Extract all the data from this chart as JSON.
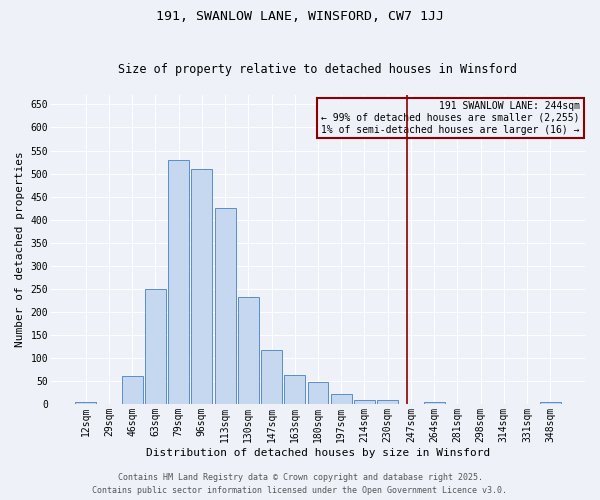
{
  "title": "191, SWANLOW LANE, WINSFORD, CW7 1JJ",
  "subtitle": "Size of property relative to detached houses in Winsford",
  "xlabel": "Distribution of detached houses by size in Winsford",
  "ylabel": "Number of detached properties",
  "bar_labels": [
    "12sqm",
    "29sqm",
    "46sqm",
    "63sqm",
    "79sqm",
    "96sqm",
    "113sqm",
    "130sqm",
    "147sqm",
    "163sqm",
    "180sqm",
    "197sqm",
    "214sqm",
    "230sqm",
    "247sqm",
    "264sqm",
    "281sqm",
    "298sqm",
    "314sqm",
    "331sqm",
    "348sqm"
  ],
  "bar_heights": [
    4,
    0,
    60,
    250,
    530,
    510,
    425,
    232,
    117,
    63,
    47,
    22,
    8,
    8,
    0,
    5,
    0,
    0,
    0,
    0,
    4
  ],
  "bar_color": "#c5d8f0",
  "bar_edge_color": "#5b8ec7",
  "ylim": [
    0,
    670
  ],
  "yticks": [
    0,
    50,
    100,
    150,
    200,
    250,
    300,
    350,
    400,
    450,
    500,
    550,
    600,
    650
  ],
  "vline_color": "#8b0000",
  "annotation_text": "191 SWANLOW LANE: 244sqm\n← 99% of detached houses are smaller (2,255)\n1% of semi-detached houses are larger (16) →",
  "annotation_box_color": "#8b0000",
  "footer_line1": "Contains HM Land Registry data © Crown copyright and database right 2025.",
  "footer_line2": "Contains public sector information licensed under the Open Government Licence v3.0.",
  "bg_color": "#eef2f8",
  "grid_color": "#ffffff",
  "title_fontsize": 9.5,
  "subtitle_fontsize": 8.5,
  "axis_label_fontsize": 8,
  "tick_fontsize": 7,
  "annotation_fontsize": 7,
  "footer_fontsize": 6
}
